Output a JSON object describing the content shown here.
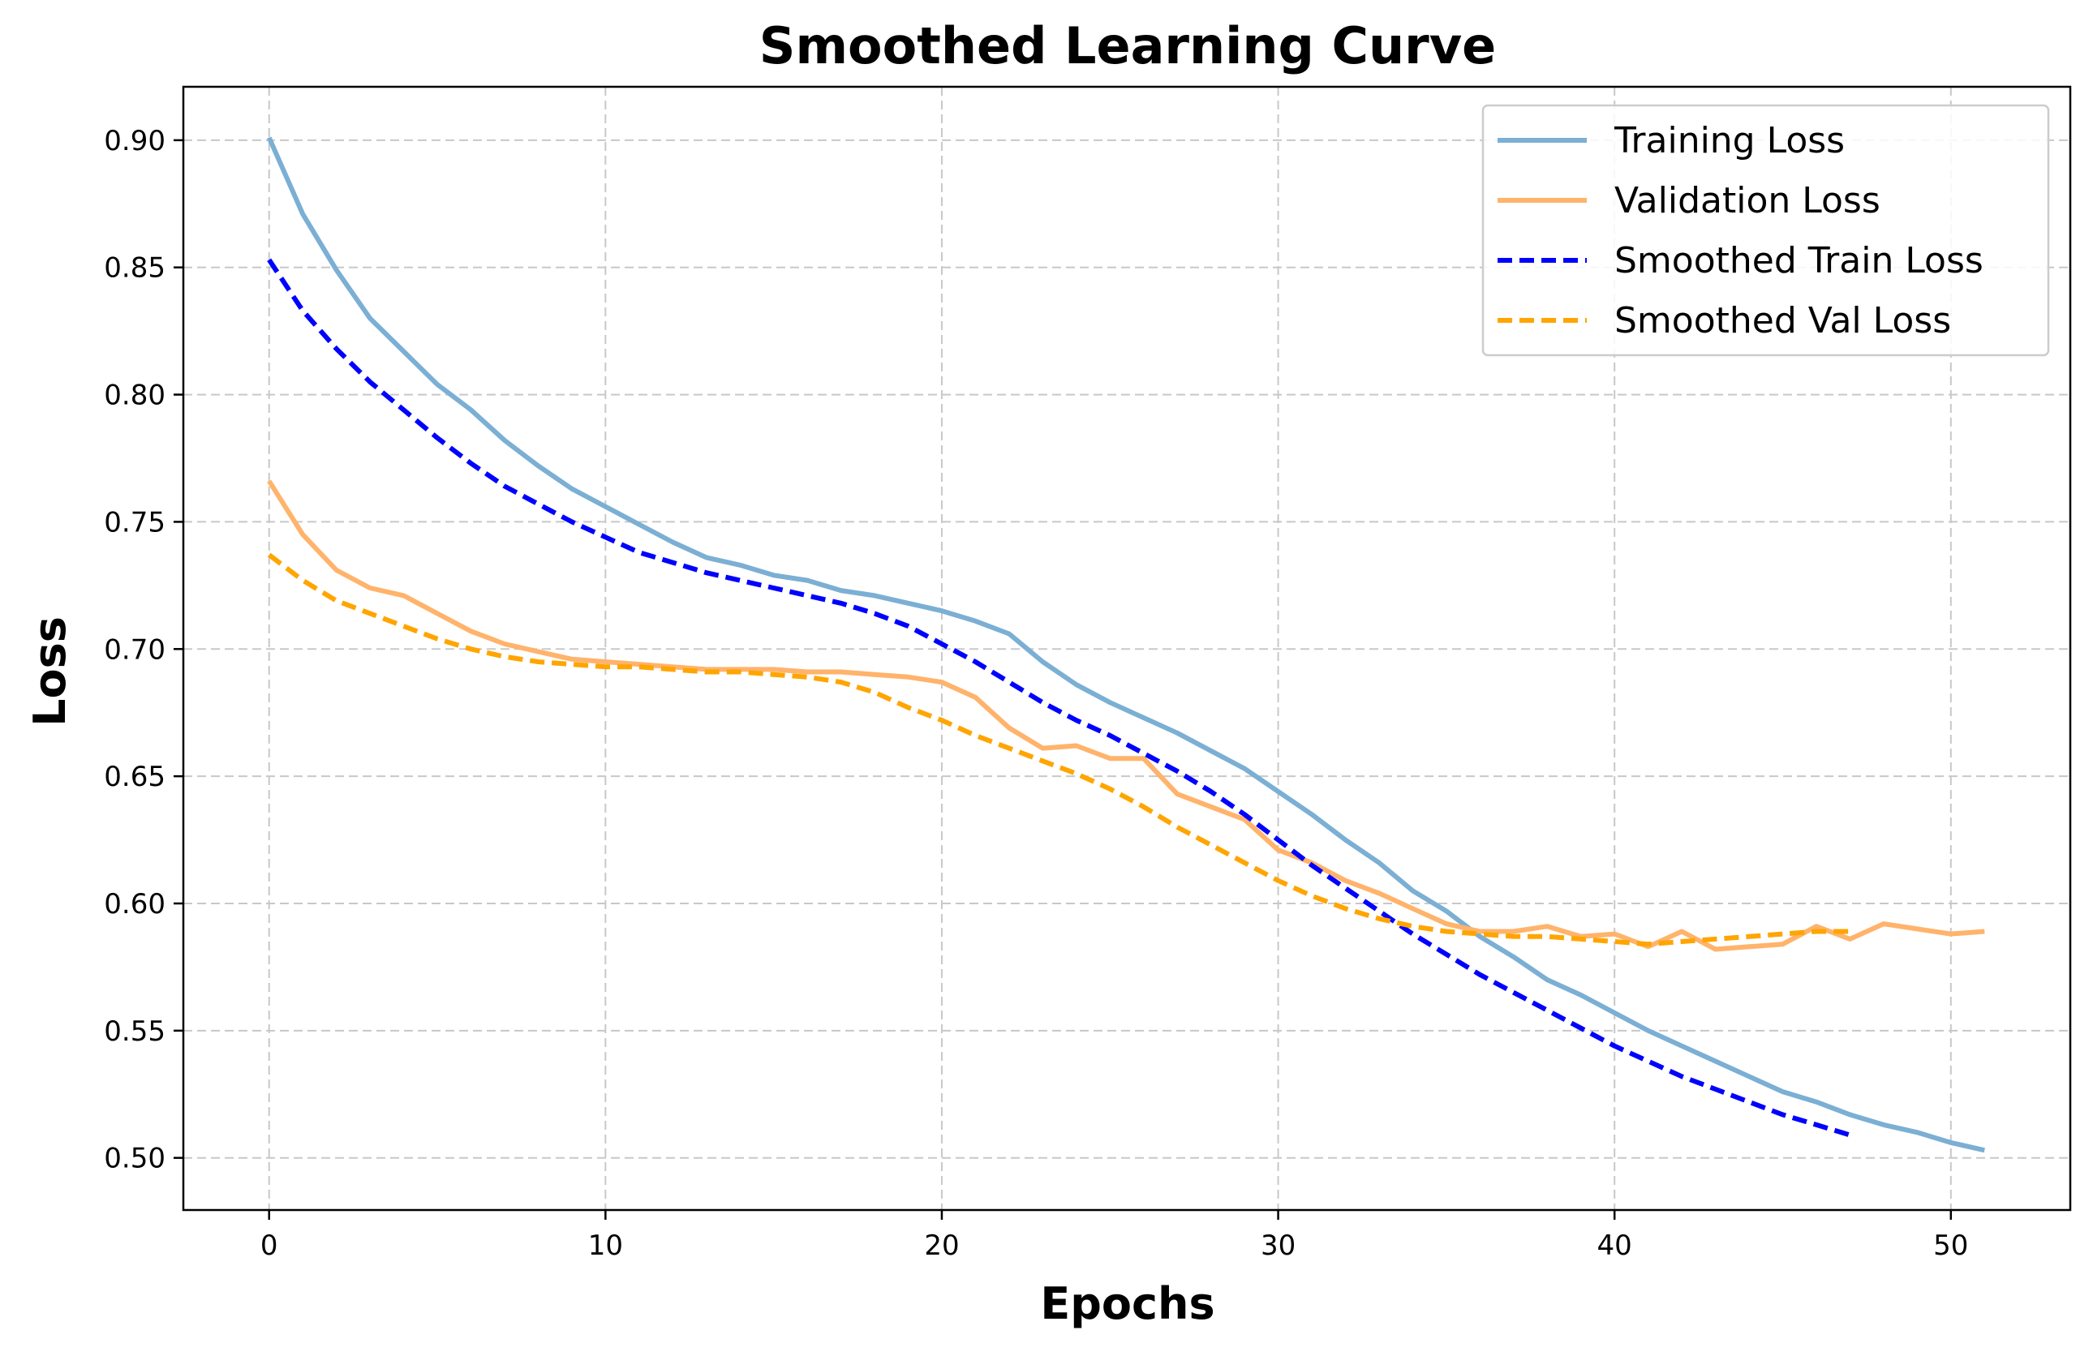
{
  "chart_data": {
    "type": "line",
    "title": "Smoothed Learning Curve",
    "xlabel": "Epochs",
    "ylabel": "Loss",
    "xlim": [
      -2.55,
      53.55
    ],
    "ylim": [
      0.4795,
      0.921
    ],
    "x_ticks": [
      0,
      10,
      20,
      30,
      40,
      50
    ],
    "x_tick_labels": [
      "0",
      "10",
      "20",
      "30",
      "40",
      "50"
    ],
    "y_ticks": [
      0.5,
      0.55,
      0.6,
      0.65,
      0.7,
      0.75,
      0.8,
      0.85,
      0.9
    ],
    "y_tick_labels": [
      "0.50",
      "0.55",
      "0.60",
      "0.65",
      "0.70",
      "0.75",
      "0.80",
      "0.85",
      "0.90"
    ],
    "grid": true,
    "legend_position": "top-right",
    "series": [
      {
        "name": "Training Loss",
        "color": "#7bafd4",
        "style": "solid",
        "x": [
          0,
          1,
          2,
          3,
          4,
          5,
          6,
          7,
          8,
          9,
          10,
          11,
          12,
          13,
          14,
          15,
          16,
          17,
          18,
          19,
          20,
          21,
          22,
          23,
          24,
          25,
          26,
          27,
          28,
          29,
          30,
          31,
          32,
          33,
          34,
          35,
          36,
          37,
          38,
          39,
          40,
          41,
          42,
          43,
          44,
          45,
          46,
          47,
          48,
          49,
          50,
          51
        ],
        "values": [
          0.901,
          0.871,
          0.849,
          0.83,
          0.817,
          0.804,
          0.794,
          0.782,
          0.772,
          0.763,
          0.756,
          0.749,
          0.742,
          0.736,
          0.733,
          0.729,
          0.727,
          0.723,
          0.721,
          0.718,
          0.715,
          0.711,
          0.706,
          0.695,
          0.686,
          0.679,
          0.673,
          0.667,
          0.66,
          0.653,
          0.644,
          0.635,
          0.625,
          0.616,
          0.605,
          0.597,
          0.587,
          0.579,
          0.57,
          0.564,
          0.557,
          0.55,
          0.544,
          0.538,
          0.532,
          0.526,
          0.522,
          0.517,
          0.513,
          0.51,
          0.506,
          0.503
        ]
      },
      {
        "name": "Validation Loss",
        "color": "#ffb36b",
        "style": "solid",
        "x": [
          0,
          1,
          2,
          3,
          4,
          5,
          6,
          7,
          8,
          9,
          10,
          11,
          12,
          13,
          14,
          15,
          16,
          17,
          18,
          19,
          20,
          21,
          22,
          23,
          24,
          25,
          26,
          27,
          28,
          29,
          30,
          31,
          32,
          33,
          34,
          35,
          36,
          37,
          38,
          39,
          40,
          41,
          42,
          43,
          44,
          45,
          46,
          47,
          48,
          49,
          50,
          51
        ],
        "values": [
          0.766,
          0.745,
          0.731,
          0.724,
          0.721,
          0.714,
          0.707,
          0.702,
          0.699,
          0.696,
          0.695,
          0.694,
          0.693,
          0.692,
          0.692,
          0.692,
          0.691,
          0.691,
          0.69,
          0.689,
          0.687,
          0.681,
          0.669,
          0.661,
          0.662,
          0.657,
          0.657,
          0.643,
          0.638,
          0.633,
          0.621,
          0.616,
          0.609,
          0.604,
          0.598,
          0.592,
          0.589,
          0.589,
          0.591,
          0.587,
          0.588,
          0.583,
          0.589,
          0.582,
          0.583,
          0.584,
          0.591,
          0.586,
          0.592,
          0.59,
          0.588,
          0.589
        ]
      },
      {
        "name": "Smoothed Train Loss",
        "color": "#0000ff",
        "style": "dashed",
        "x": [
          0,
          1,
          2,
          3,
          4,
          5,
          6,
          7,
          8,
          9,
          10,
          11,
          12,
          13,
          14,
          15,
          16,
          17,
          18,
          19,
          20,
          21,
          22,
          23,
          24,
          25,
          26,
          27,
          28,
          29,
          30,
          31,
          32,
          33,
          34,
          35,
          36,
          37,
          38,
          39,
          40,
          41,
          42,
          43,
          44,
          45,
          46,
          47
        ],
        "values": [
          0.853,
          0.833,
          0.818,
          0.805,
          0.794,
          0.783,
          0.773,
          0.764,
          0.757,
          0.75,
          0.744,
          0.738,
          0.734,
          0.73,
          0.727,
          0.724,
          0.721,
          0.718,
          0.714,
          0.709,
          0.702,
          0.695,
          0.687,
          0.679,
          0.672,
          0.666,
          0.659,
          0.652,
          0.644,
          0.635,
          0.625,
          0.615,
          0.606,
          0.597,
          0.588,
          0.58,
          0.572,
          0.565,
          0.558,
          0.551,
          0.544,
          0.538,
          0.532,
          0.527,
          0.522,
          0.517,
          0.513,
          0.509
        ]
      },
      {
        "name": "Smoothed Val Loss",
        "color": "#ffa500",
        "style": "dashed",
        "x": [
          0,
          1,
          2,
          3,
          4,
          5,
          6,
          7,
          8,
          9,
          10,
          11,
          12,
          13,
          14,
          15,
          16,
          17,
          18,
          19,
          20,
          21,
          22,
          23,
          24,
          25,
          26,
          27,
          28,
          29,
          30,
          31,
          32,
          33,
          34,
          35,
          36,
          37,
          38,
          39,
          40,
          41,
          42,
          43,
          44,
          45,
          46,
          47
        ],
        "values": [
          0.737,
          0.727,
          0.719,
          0.714,
          0.709,
          0.704,
          0.7,
          0.697,
          0.695,
          0.694,
          0.693,
          0.693,
          0.692,
          0.691,
          0.691,
          0.69,
          0.689,
          0.687,
          0.683,
          0.677,
          0.672,
          0.666,
          0.661,
          0.656,
          0.651,
          0.645,
          0.638,
          0.63,
          0.623,
          0.616,
          0.609,
          0.603,
          0.598,
          0.594,
          0.591,
          0.589,
          0.588,
          0.587,
          0.587,
          0.586,
          0.585,
          0.584,
          0.585,
          0.586,
          0.587,
          0.588,
          0.589,
          0.589
        ]
      }
    ]
  }
}
